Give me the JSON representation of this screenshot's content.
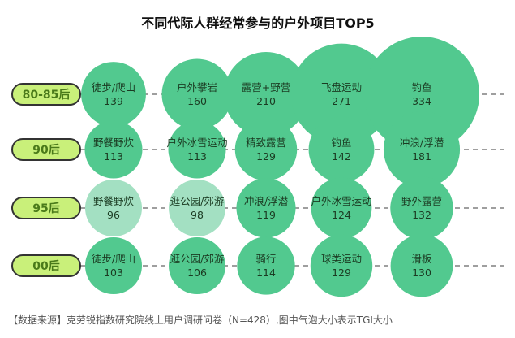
{
  "chart_data": {
    "type": "bubble",
    "title": "不同代际人群经常参与的户外项目TOP5",
    "note": "【数据来源】克劳锐指数研究院线上用户调研问卷（N=428）,图中气泡大小表示TGI大小",
    "rows": [
      {
        "label": "80-85后",
        "items": [
          {
            "name": "徒步/爬山",
            "value": 139
          },
          {
            "name": "户外攀岩",
            "value": 160
          },
          {
            "name": "露营+野营",
            "value": 210
          },
          {
            "name": "飞盘运动",
            "value": 271
          },
          {
            "name": "钓鱼",
            "value": 334
          }
        ]
      },
      {
        "label": "90后",
        "items": [
          {
            "name": "野餐野炊",
            "value": 113
          },
          {
            "name": "户外冰雪运动",
            "value": 113
          },
          {
            "name": "精致露营",
            "value": 129
          },
          {
            "name": "钓鱼",
            "value": 142
          },
          {
            "name": "冲浪/浮潜",
            "value": 181
          }
        ]
      },
      {
        "label": "95后",
        "items": [
          {
            "name": "野餐野炊",
            "value": 96
          },
          {
            "name": "逛公园/郊游",
            "value": 98
          },
          {
            "name": "冲浪/浮潜",
            "value": 119
          },
          {
            "name": "户外冰雪运动",
            "value": 124
          },
          {
            "name": "野外露营",
            "value": 132
          }
        ]
      },
      {
        "label": "00后",
        "items": [
          {
            "name": "徒步/爬山",
            "value": 103
          },
          {
            "name": "逛公园/郊游",
            "value": 106
          },
          {
            "name": "骑行",
            "value": 114
          },
          {
            "name": "球类运动",
            "value": 129
          },
          {
            "name": "滑板",
            "value": 130
          }
        ]
      }
    ],
    "colors": {
      "bubble_high": "#52c98f",
      "bubble_low": "#a3e0c2",
      "pill_fill": "#c9f07a",
      "pill_text": "#4a7a1a"
    },
    "threshold": 100
  }
}
